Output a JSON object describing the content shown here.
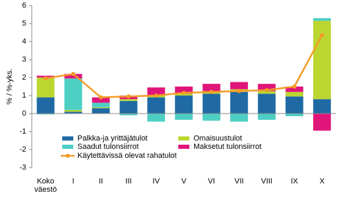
{
  "chart_data": {
    "type": "stacked-bar-line",
    "y_label": "% / %-yks.",
    "categories": [
      "Koko väestö",
      "I",
      "II",
      "III",
      "IV",
      "V",
      "VI",
      "VII",
      "VIII",
      "IX",
      "X"
    ],
    "series": [
      {
        "name": "Palkka-ja yrittäjätulot",
        "color": "#1f6aa5",
        "values": [
          0.9,
          0.1,
          0.3,
          0.7,
          0.9,
          1.0,
          1.1,
          1.2,
          1.1,
          0.95,
          0.8
        ]
      },
      {
        "name": "Omaisuustulot",
        "color": "#bcd631",
        "values": [
          1.1,
          0.1,
          0.05,
          0.1,
          0.1,
          0.1,
          0.15,
          0.15,
          0.15,
          0.25,
          4.35
        ]
      },
      {
        "name": "Saadut tulonsiirrot",
        "color": "#4dcfc4",
        "values": [
          -0.05,
          1.75,
          0.25,
          -0.1,
          -0.45,
          -0.35,
          -0.4,
          -0.45,
          -0.35,
          -0.15,
          0.15
        ]
      },
      {
        "name": "Maksetut tulonsiirrot",
        "color": "#e0157a",
        "values": [
          0.1,
          0.25,
          0.3,
          0.2,
          0.45,
          0.4,
          0.4,
          0.4,
          0.4,
          0.3,
          -0.95
        ]
      },
      {
        "name": "Käytettävissä olevat rahatulot",
        "color": "#f39b29",
        "kind": "line",
        "values": [
          1.95,
          2.2,
          0.9,
          0.95,
          1.0,
          1.15,
          1.2,
          1.25,
          1.3,
          1.5,
          4.35
        ]
      }
    ],
    "ylim": [
      -3,
      6
    ],
    "yticks": [
      -3,
      -2,
      -1,
      0,
      1,
      2,
      3,
      4,
      5,
      6
    ]
  }
}
